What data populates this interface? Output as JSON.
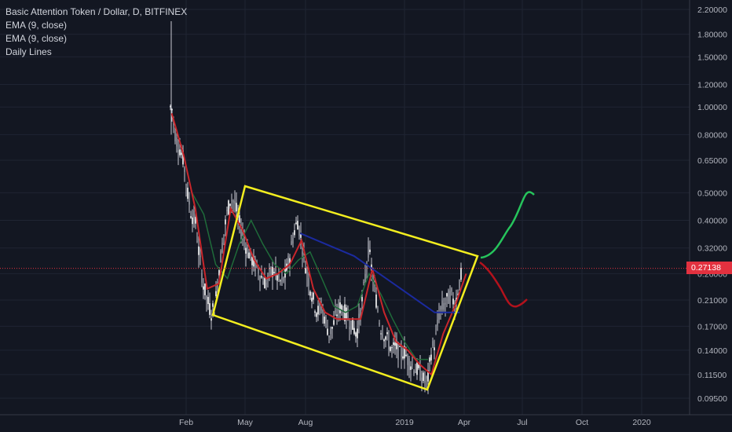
{
  "legend": {
    "title": "Basic Attention Token / Dollar, D, BITFINEX",
    "ema1": "EMA (9, close)",
    "ema2": "EMA (9, close)",
    "daily": "Daily Lines"
  },
  "current_price_label": "0.27138",
  "colors": {
    "background": "#131722",
    "candle_up": "#d1d4dc",
    "candle_down": "#d1d4dc",
    "ema_red": "#c9262b",
    "ema_green": "#1f6b3a",
    "blue_line": "#1b2a9e",
    "channel": "#f3ee1f",
    "projection_up": "#26c45c",
    "projection_down": "#b3121c",
    "price_line": "#e2313f",
    "price_label_bg": "#e2313f"
  },
  "chart_data": {
    "type": "line",
    "scale": "log",
    "x_ticks": [
      "Feb",
      "May",
      "Aug",
      "2019",
      "Apr",
      "Jul",
      "Oct",
      "2020"
    ],
    "y_ticks": [
      "2.20000",
      "1.80000",
      "1.50000",
      "1.20000",
      "1.00000",
      "0.80000",
      "0.65000",
      "0.50000",
      "0.40000",
      "0.32000",
      "0.26000",
      "0.21000",
      "0.17000",
      "0.14000",
      "0.11500",
      "0.09500"
    ],
    "ylim": [
      0.087,
      2.4
    ],
    "current_price": 0.27138,
    "series": [
      {
        "name": "BAT/USD price",
        "x": [
          "2018-01-10",
          "2018-01-16",
          "2018-01-22",
          "2018-01-28",
          "2018-02-03",
          "2018-02-09",
          "2018-02-15",
          "2018-02-21",
          "2018-02-27",
          "2018-03-05",
          "2018-03-11",
          "2018-03-17",
          "2018-03-23",
          "2018-03-29",
          "2018-04-04",
          "2018-04-10",
          "2018-04-16",
          "2018-04-22",
          "2018-04-28",
          "2018-05-04",
          "2018-05-10",
          "2018-05-16",
          "2018-05-22",
          "2018-05-28",
          "2018-06-03",
          "2018-06-09",
          "2018-06-15",
          "2018-06-21",
          "2018-06-27",
          "2018-07-03",
          "2018-07-09",
          "2018-07-15",
          "2018-07-21",
          "2018-07-27",
          "2018-08-02",
          "2018-08-08",
          "2018-08-14",
          "2018-08-20",
          "2018-08-26",
          "2018-09-01",
          "2018-09-07",
          "2018-09-13",
          "2018-09-19",
          "2018-09-25",
          "2018-10-01",
          "2018-10-07",
          "2018-10-13",
          "2018-10-19",
          "2018-10-25",
          "2018-10-31",
          "2018-11-06",
          "2018-11-12",
          "2018-11-18",
          "2018-11-24",
          "2018-11-30",
          "2018-12-06",
          "2018-12-12",
          "2018-12-18",
          "2018-12-24",
          "2018-12-30",
          "2019-01-05",
          "2019-01-11",
          "2019-01-17",
          "2019-01-23",
          "2019-01-29",
          "2019-02-04",
          "2019-02-10",
          "2019-02-16",
          "2019-02-22",
          "2019-02-28",
          "2019-03-06",
          "2019-03-12",
          "2019-03-18",
          "2019-03-24",
          "2019-03-30",
          "2019-04-04"
        ],
        "values": [
          1.0,
          0.78,
          0.72,
          0.65,
          0.5,
          0.42,
          0.4,
          0.3,
          0.24,
          0.21,
          0.19,
          0.2,
          0.27,
          0.34,
          0.42,
          0.48,
          0.46,
          0.4,
          0.36,
          0.32,
          0.3,
          0.28,
          0.27,
          0.25,
          0.24,
          0.26,
          0.27,
          0.25,
          0.24,
          0.26,
          0.3,
          0.36,
          0.4,
          0.34,
          0.28,
          0.24,
          0.21,
          0.19,
          0.2,
          0.18,
          0.16,
          0.17,
          0.19,
          0.2,
          0.19,
          0.18,
          0.17,
          0.16,
          0.19,
          0.24,
          0.32,
          0.26,
          0.21,
          0.17,
          0.16,
          0.15,
          0.14,
          0.145,
          0.135,
          0.14,
          0.13,
          0.125,
          0.12,
          0.118,
          0.11,
          0.108,
          0.14,
          0.15,
          0.19,
          0.2,
          0.21,
          0.22,
          0.2,
          0.24,
          0.27,
          0.27138
        ]
      },
      {
        "name": "EMA (9, close)",
        "x": [
          "2018-01-10",
          "2018-01-28",
          "2018-02-15",
          "2018-03-05",
          "2018-03-23",
          "2018-04-10",
          "2018-04-28",
          "2018-05-16",
          "2018-06-03",
          "2018-06-21",
          "2018-07-09",
          "2018-07-27",
          "2018-08-14",
          "2018-09-01",
          "2018-09-19",
          "2018-10-07",
          "2018-10-25",
          "2018-11-12",
          "2018-11-30",
          "2018-12-18",
          "2019-01-05",
          "2019-01-23",
          "2019-02-10",
          "2019-02-28",
          "2019-03-18",
          "2019-04-04"
        ],
        "values": [
          0.95,
          0.68,
          0.44,
          0.23,
          0.24,
          0.44,
          0.37,
          0.29,
          0.25,
          0.26,
          0.28,
          0.34,
          0.23,
          0.19,
          0.18,
          0.18,
          0.18,
          0.27,
          0.19,
          0.15,
          0.14,
          0.125,
          0.115,
          0.16,
          0.2,
          0.26
        ]
      },
      {
        "name": "EMA (9, close)",
        "x": [
          "2018-02-10",
          "2018-02-28",
          "2018-03-18",
          "2018-04-05",
          "2018-04-23",
          "2018-05-11",
          "2018-05-29",
          "2018-06-16",
          "2018-07-04",
          "2018-07-22",
          "2018-08-09",
          "2018-08-27",
          "2018-09-14",
          "2018-10-02",
          "2018-10-20",
          "2018-11-07",
          "2018-11-25",
          "2018-12-13",
          "2018-12-31",
          "2019-01-18",
          "2019-02-05"
        ],
        "values": [
          0.5,
          0.42,
          0.28,
          0.25,
          0.33,
          0.4,
          0.33,
          0.28,
          0.26,
          0.29,
          0.31,
          0.25,
          0.2,
          0.19,
          0.2,
          0.26,
          0.22,
          0.18,
          0.15,
          0.13,
          0.13
        ]
      },
      {
        "name": "Daily Lines",
        "x": [
          "2018-07-25",
          "2018-10-15",
          "2019-02-15",
          "2019-03-25"
        ],
        "values": [
          0.36,
          0.3,
          0.19,
          0.19
        ]
      }
    ]
  }
}
